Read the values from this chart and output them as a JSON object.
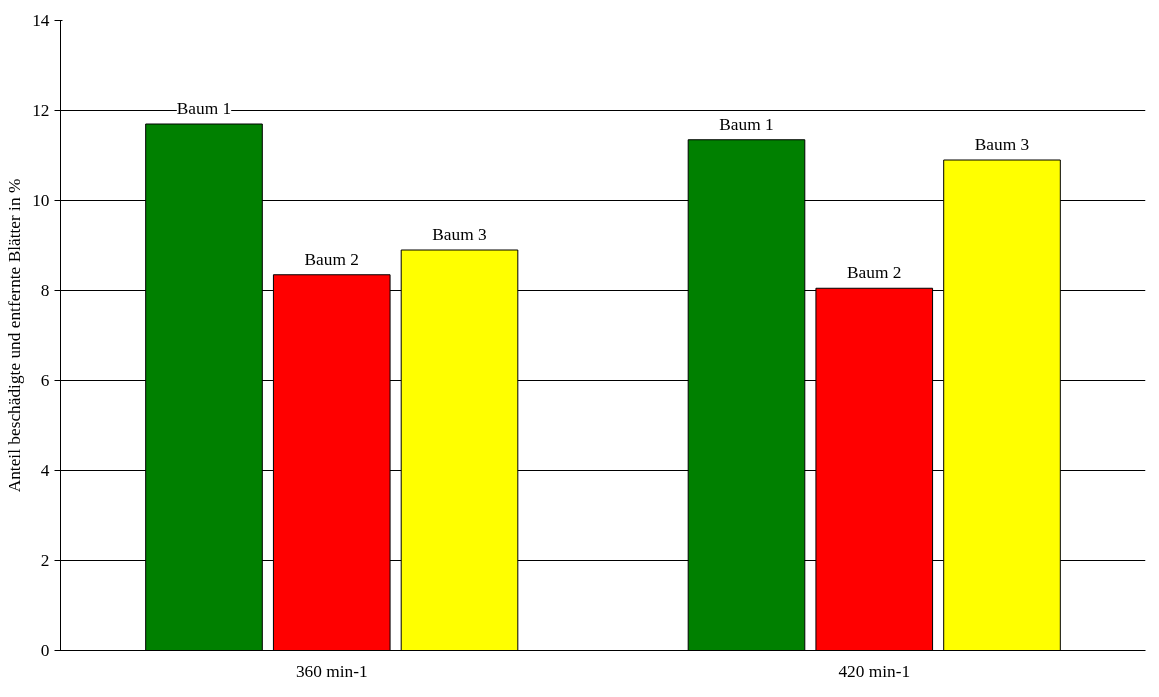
{
  "chart_data": {
    "type": "bar",
    "ylabel": "Anteil beschädigte und entfernte Blätter in %",
    "categories": [
      "360 min-1",
      "420 min-1"
    ],
    "series": [
      {
        "name": "Baum 1",
        "color": "#008000",
        "values": [
          11.7,
          11.35
        ]
      },
      {
        "name": "Baum 2",
        "color": "#ff0000",
        "values": [
          8.35,
          8.05
        ]
      },
      {
        "name": "Baum 3",
        "color": "#ffff00",
        "values": [
          8.9,
          10.9
        ]
      }
    ],
    "ylim": [
      0,
      14
    ],
    "yticks": [
      0,
      2,
      4,
      6,
      8,
      10,
      12,
      14
    ],
    "grid": "y"
  }
}
